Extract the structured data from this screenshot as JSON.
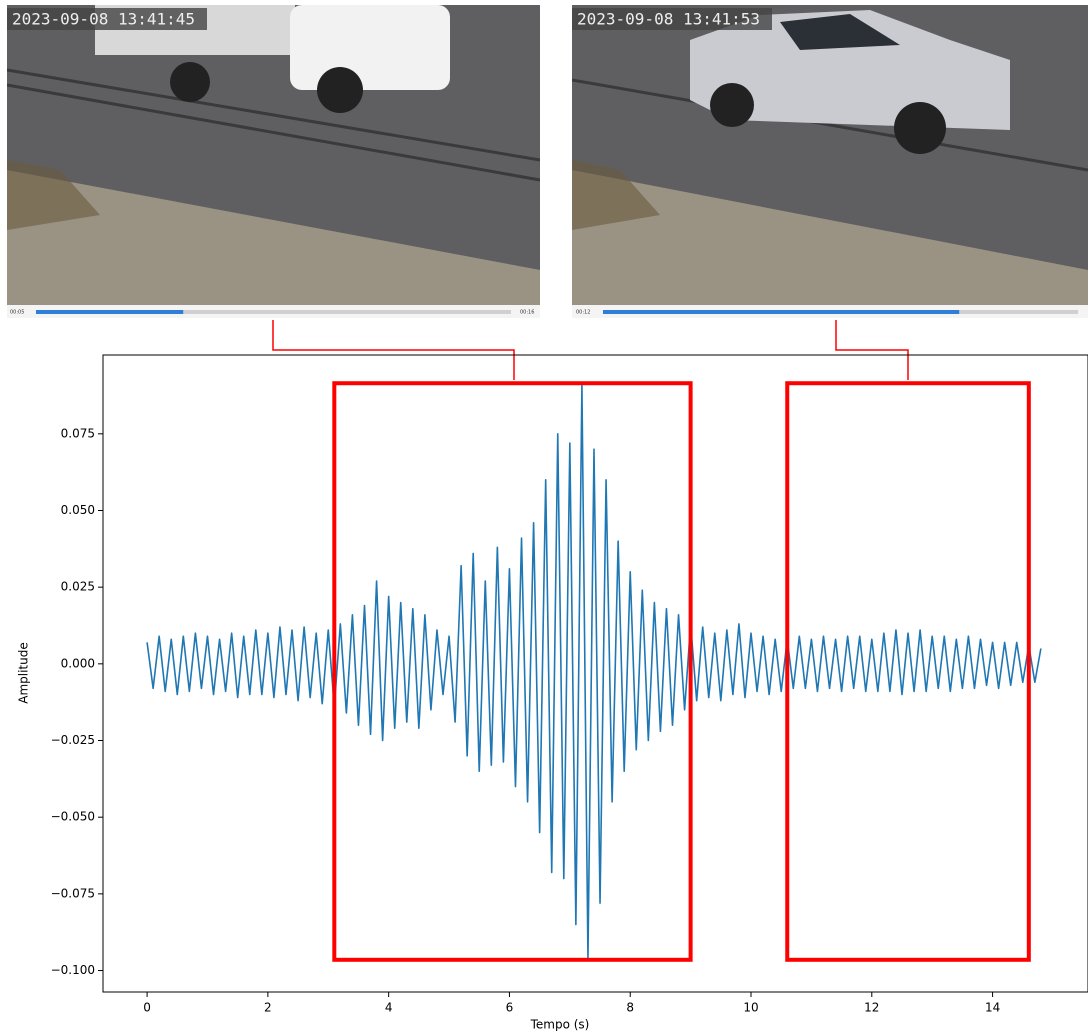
{
  "videos": [
    {
      "timestamp": "2023-09-08   13:41:45",
      "time_start": "00:05",
      "time_end": "00:16",
      "progress": 0.31
    },
    {
      "timestamp": "2023-09-08   13:41:53",
      "time_start": "00:12",
      "progress": 0.75
    }
  ],
  "chart_data": {
    "type": "line",
    "xlabel": "Tempo (s)",
    "ylabel": "Amplitude",
    "xlim": [
      -0.73,
      15.58
    ],
    "ylim": [
      -0.107,
      0.1007
    ],
    "xticks": [
      0,
      2,
      4,
      6,
      8,
      10,
      12,
      14
    ],
    "yticks": [
      {
        "value": -0.1,
        "label": "−0.100"
      },
      {
        "value": -0.075,
        "label": "−0.075"
      },
      {
        "value": -0.05,
        "label": "−0.050"
      },
      {
        "value": -0.025,
        "label": "−0.025"
      },
      {
        "value": 0,
        "label": "0.000"
      },
      {
        "value": 0.025,
        "label": "0.025"
      },
      {
        "value": 0.05,
        "label": "0.050"
      },
      {
        "value": 0.075,
        "label": "0.075"
      }
    ],
    "highlights": [
      {
        "x": [
          3.1,
          9.0
        ],
        "y": [
          -0.0965,
          0.0915
        ],
        "color": "#ff0000"
      },
      {
        "x": [
          10.6,
          14.6
        ],
        "y": [
          -0.0965,
          0.0915
        ],
        "color": "#ff0000"
      }
    ],
    "series": [
      {
        "color": "#1f77b4",
        "x": [
          0,
          0.1,
          0.2,
          0.3,
          0.4,
          0.5,
          0.6,
          0.7,
          0.8,
          0.9,
          1,
          1.1,
          1.2,
          1.3,
          1.4,
          1.5,
          1.6,
          1.7,
          1.8,
          1.9,
          2,
          2.1,
          2.2,
          2.3,
          2.4,
          2.5,
          2.6,
          2.7,
          2.8,
          2.9,
          3,
          3.1,
          3.2,
          3.3,
          3.4,
          3.5,
          3.6,
          3.7,
          3.8,
          3.9,
          4,
          4.1,
          4.2,
          4.3,
          4.4,
          4.5,
          4.6,
          4.7,
          4.8,
          4.9,
          5,
          5.1,
          5.2,
          5.3,
          5.4,
          5.5,
          5.6,
          5.7,
          5.8,
          5.9,
          6,
          6.1,
          6.2,
          6.3,
          6.4,
          6.5,
          6.6,
          6.7,
          6.8,
          6.9,
          7,
          7.1,
          7.2,
          7.3,
          7.4,
          7.5,
          7.6,
          7.7,
          7.8,
          7.9,
          8,
          8.1,
          8.2,
          8.3,
          8.4,
          8.5,
          8.6,
          8.7,
          8.8,
          8.9,
          9,
          9.1,
          9.2,
          9.3,
          9.4,
          9.5,
          9.6,
          9.7,
          9.8,
          9.9,
          10,
          10.1,
          10.2,
          10.3,
          10.4,
          10.5,
          10.6,
          10.7,
          10.8,
          10.9,
          11,
          11.1,
          11.2,
          11.3,
          11.4,
          11.5,
          11.6,
          11.7,
          11.8,
          11.9,
          12,
          12.1,
          12.2,
          12.3,
          12.4,
          12.5,
          12.6,
          12.7,
          12.8,
          12.9,
          13,
          13.1,
          13.2,
          13.3,
          13.4,
          13.5,
          13.6,
          13.7,
          13.8,
          13.9,
          14,
          14.1,
          14.2,
          14.3,
          14.4,
          14.5,
          14.6,
          14.7,
          14.8
        ],
        "values": [
          0.007,
          -0.008,
          0.009,
          -0.009,
          0.008,
          -0.01,
          0.009,
          -0.009,
          0.01,
          -0.008,
          0.009,
          -0.01,
          0.008,
          -0.009,
          0.01,
          -0.011,
          0.009,
          -0.01,
          0.011,
          -0.01,
          0.01,
          -0.011,
          0.012,
          -0.01,
          0.011,
          -0.012,
          0.012,
          -0.011,
          0.01,
          -0.013,
          0.011,
          -0.014,
          0.013,
          -0.016,
          0.016,
          -0.02,
          0.019,
          -0.023,
          0.027,
          -0.025,
          0.022,
          -0.021,
          0.02,
          -0.019,
          0.018,
          -0.021,
          0.016,
          -0.015,
          0.011,
          -0.01,
          0.009,
          -0.019,
          0.032,
          -0.03,
          0.036,
          -0.035,
          0.027,
          -0.033,
          0.038,
          -0.032,
          0.031,
          -0.04,
          0.041,
          -0.045,
          0.046,
          -0.055,
          0.06,
          -0.068,
          0.075,
          -0.07,
          0.072,
          -0.085,
          0.091,
          -0.096,
          0.07,
          -0.078,
          0.06,
          -0.045,
          0.04,
          -0.035,
          0.03,
          -0.028,
          0.024,
          -0.025,
          0.02,
          -0.022,
          0.018,
          -0.02,
          0.016,
          -0.015,
          0.013,
          -0.012,
          0.012,
          -0.011,
          0.01,
          -0.012,
          0.011,
          -0.01,
          0.013,
          -0.011,
          0.01,
          -0.009,
          0.009,
          -0.01,
          0.008,
          -0.009,
          0.008,
          -0.008,
          0.009,
          -0.008,
          0.008,
          -0.009,
          0.009,
          -0.008,
          0.008,
          -0.009,
          0.009,
          -0.008,
          0.009,
          -0.009,
          0.008,
          -0.009,
          0.01,
          -0.009,
          0.011,
          -0.01,
          0.01,
          -0.009,
          0.011,
          -0.009,
          0.009,
          -0.008,
          0.009,
          -0.009,
          0.008,
          -0.008,
          0.009,
          -0.008,
          0.008,
          -0.007,
          0.007,
          -0.008,
          0.007,
          -0.007,
          0.007,
          -0.006,
          0.006,
          -0.006,
          0.005
        ]
      }
    ]
  }
}
